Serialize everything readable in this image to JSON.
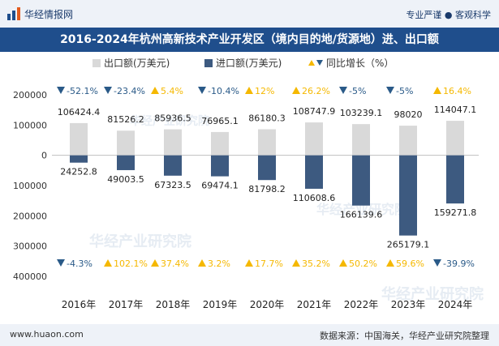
{
  "header": {
    "brand": "华经情报网",
    "tagline": "专业严谨 ● 客观科学"
  },
  "title": "2016-2024年杭州高新技术产业开发区（境内目的地/货源地）进、出口额",
  "footer": {
    "website": "www.huaon.com",
    "source": "数据来源：中国海关，华经产业研究院整理"
  },
  "watermark": "华经产业研究院",
  "colors": {
    "export": "#d9d9d9",
    "import": "#3d5a80",
    "up": "#f5b800",
    "down": "#2a5a88",
    "brand": "#1f4e8c"
  },
  "chart_data": {
    "type": "bar",
    "categories": [
      "2016年",
      "2017年",
      "2018年",
      "2019年",
      "2020年",
      "2021年",
      "2022年",
      "2023年",
      "2024年"
    ],
    "series": [
      {
        "name": "出口额(万美元)",
        "values": [
          106424.4,
          81526.2,
          85936.5,
          76965.1,
          86180.3,
          108747.9,
          103239.1,
          98020,
          114047.1
        ],
        "labels": [
          "106424.4",
          "81526.2",
          "85936.5",
          "76965.1",
          "86180.3",
          "108747.9",
          "103239.1",
          "98020",
          "114047.1"
        ]
      },
      {
        "name": "进口额(万美元)",
        "values": [
          -24252.8,
          -49003.5,
          -67323.5,
          -69474.1,
          -81798.2,
          -110608.6,
          -166139.6,
          -265179.1,
          -159271.8
        ],
        "labels": [
          "24252.8",
          "49003.5",
          "67323.5",
          "69474.1",
          "81798.2",
          "110608.6",
          "166139.6",
          "265179.1",
          "159271.8"
        ]
      }
    ],
    "growth": {
      "name": "同比增长（%）",
      "export": [
        "-52.1%",
        "-23.4%",
        "5.4%",
        "-10.4%",
        "12%",
        "26.2%",
        "-5%",
        "-5%",
        "16.4%"
      ],
      "import": [
        "-4.3%",
        "102.1%",
        "37.4%",
        "3.2%",
        "17.7%",
        "35.2%",
        "50.2%",
        "59.6%",
        "-39.9%"
      ]
    },
    "yticks": [
      200000,
      100000,
      0,
      -100000,
      -200000,
      -300000,
      -400000
    ],
    "ytick_labels": [
      "200000",
      "100000",
      "0",
      "100000",
      "200000",
      "300000",
      "400000"
    ],
    "ylim": [
      -400000,
      200000
    ],
    "xlabel": "",
    "ylabel": ""
  }
}
